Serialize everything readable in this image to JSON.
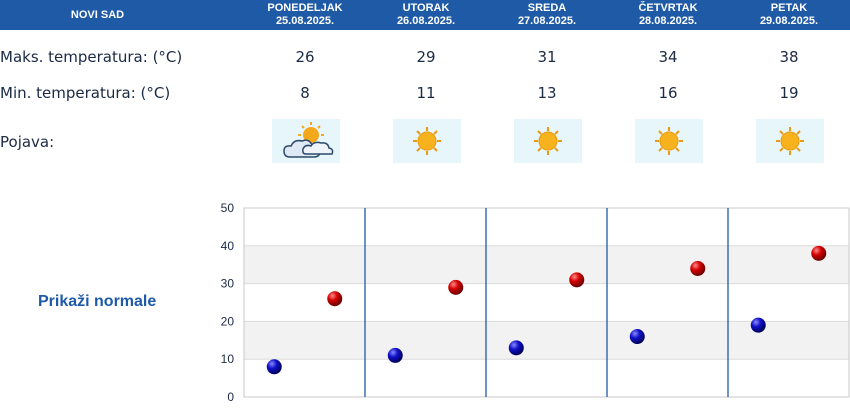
{
  "location": "NOVI SAD",
  "days": [
    {
      "name": "PONEDELJAK",
      "date": "25.08.2025.",
      "max": "26",
      "min": "8",
      "icon": "partly-cloudy-icon"
    },
    {
      "name": "UTORAK",
      "date": "26.08.2025.",
      "max": "29",
      "min": "11",
      "icon": "sun-icon"
    },
    {
      "name": "SREDA",
      "date": "27.08.2025.",
      "max": "31",
      "min": "13",
      "icon": "sun-icon"
    },
    {
      "name": "ČETVRTAK",
      "date": "28.08.2025.",
      "max": "34",
      "min": "16",
      "icon": "sun-icon"
    },
    {
      "name": "PETAK",
      "date": "29.08.2025.",
      "max": "38",
      "min": "19",
      "icon": "sun-icon"
    }
  ],
  "labels": {
    "max": "Maks. temperatura: (°C)",
    "min": "Min. temperatura: (°C)",
    "phenomenon": "Pojava:",
    "normals_link": "Prikaži normale"
  },
  "colors": {
    "header_bg": "#1f5aa6",
    "max_point": "#cc0000",
    "min_point": "#1010b8",
    "icon_bg": "#e6f6fb",
    "chart_band": "#f2f2f2",
    "day_divider": "#1f5aa6"
  },
  "chart_data": {
    "type": "scatter",
    "categories": [
      "25.08.2025.",
      "26.08.2025.",
      "27.08.2025.",
      "28.08.2025.",
      "29.08.2025."
    ],
    "series": [
      {
        "values": [
          26,
          29,
          31,
          34,
          38
        ],
        "color": "#cc0000"
      },
      {
        "values": [
          8,
          11,
          13,
          16,
          19
        ],
        "color": "#1010b8"
      }
    ],
    "ylim": [
      0,
      50
    ],
    "yticks": [
      0,
      10,
      20,
      30,
      40,
      50
    ],
    "grid": true
  }
}
